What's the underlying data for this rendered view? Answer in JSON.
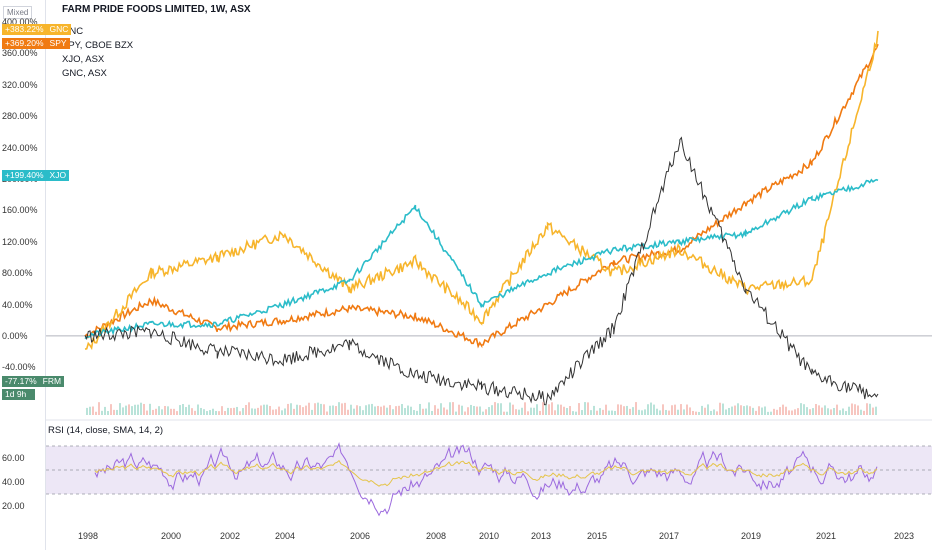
{
  "header": {
    "scale_mode": "Mixed",
    "title": "FARM PRIDE FOODS LIMITED, 1W, ASX"
  },
  "legend": {
    "items": [
      "GNC",
      "SPY, CBOE BZX",
      "XJO, ASX",
      "GNC, ASX"
    ]
  },
  "price_axis": {
    "ticks": [
      "400.00%",
      "360.00%",
      "320.00%",
      "280.00%",
      "240.00%",
      "200.00%",
      "160.00%",
      "120.00%",
      "80.00%",
      "40.00%",
      "0.00%",
      "-40.00%"
    ]
  },
  "badges": [
    {
      "value": "+383.22%",
      "symbol": "GNC",
      "color": "#f7b52c"
    },
    {
      "value": "+369.20%",
      "symbol": "SPY",
      "color": "#f07a12"
    },
    {
      "value": "+199.40%",
      "symbol": "XJO",
      "color": "#2bbcc9"
    },
    {
      "value": "-77.17%",
      "symbol": "FRM",
      "color": "#4a8a6c"
    },
    {
      "value": "1d 9h",
      "symbol": "",
      "color": "#4a8a6c"
    }
  ],
  "rsi": {
    "label": "RSI (14, close, SMA, 14, 2)",
    "ticks": [
      "60.00",
      "40.00",
      "20.00"
    ]
  },
  "time_axis": {
    "ticks": [
      "1998",
      "2000",
      "2002",
      "2004",
      "2006",
      "2008",
      "2010",
      "2013",
      "2015",
      "2017",
      "2019",
      "2021",
      "2023"
    ]
  },
  "colors": {
    "spy": "#f07a12",
    "gnc": "#f7b52c",
    "xjo": "#2bbcc9",
    "frm": "#333333",
    "rsi": "#9c6ade",
    "rsi_ma": "#e5c44a",
    "rsi_band": "#ede7f6"
  },
  "chart_data": {
    "type": "line",
    "title": "FARM PRIDE FOODS LIMITED, 1W, ASX",
    "x": [
      "1998",
      "2000",
      "2002",
      "2004",
      "2006",
      "2008",
      "2010",
      "2013",
      "2015",
      "2017",
      "2019",
      "2021",
      "2022.3"
    ],
    "ylim": [
      -60,
      400
    ],
    "series": [
      {
        "name": "SPY, CBOE BZX",
        "values": [
          0,
          45,
          10,
          20,
          35,
          25,
          -10,
          40,
          95,
          110,
          170,
          220,
          369
        ]
      },
      {
        "name": "GNC, ASX",
        "values": [
          -20,
          80,
          100,
          130,
          60,
          95,
          20,
          140,
          80,
          110,
          60,
          70,
          383
        ]
      },
      {
        "name": "XJO, ASX",
        "values": [
          0,
          15,
          15,
          40,
          70,
          165,
          40,
          80,
          110,
          120,
          130,
          175,
          199
        ]
      },
      {
        "name": "FRM",
        "values": [
          0,
          5,
          -20,
          -30,
          -10,
          -50,
          -65,
          -80,
          10,
          250,
          60,
          -50,
          -77
        ]
      }
    ],
    "rsi": {
      "name": "RSI (14, close, SMA, 14, 2)",
      "ylim": [
        10,
        90
      ],
      "bands": [
        30,
        70
      ]
    }
  }
}
